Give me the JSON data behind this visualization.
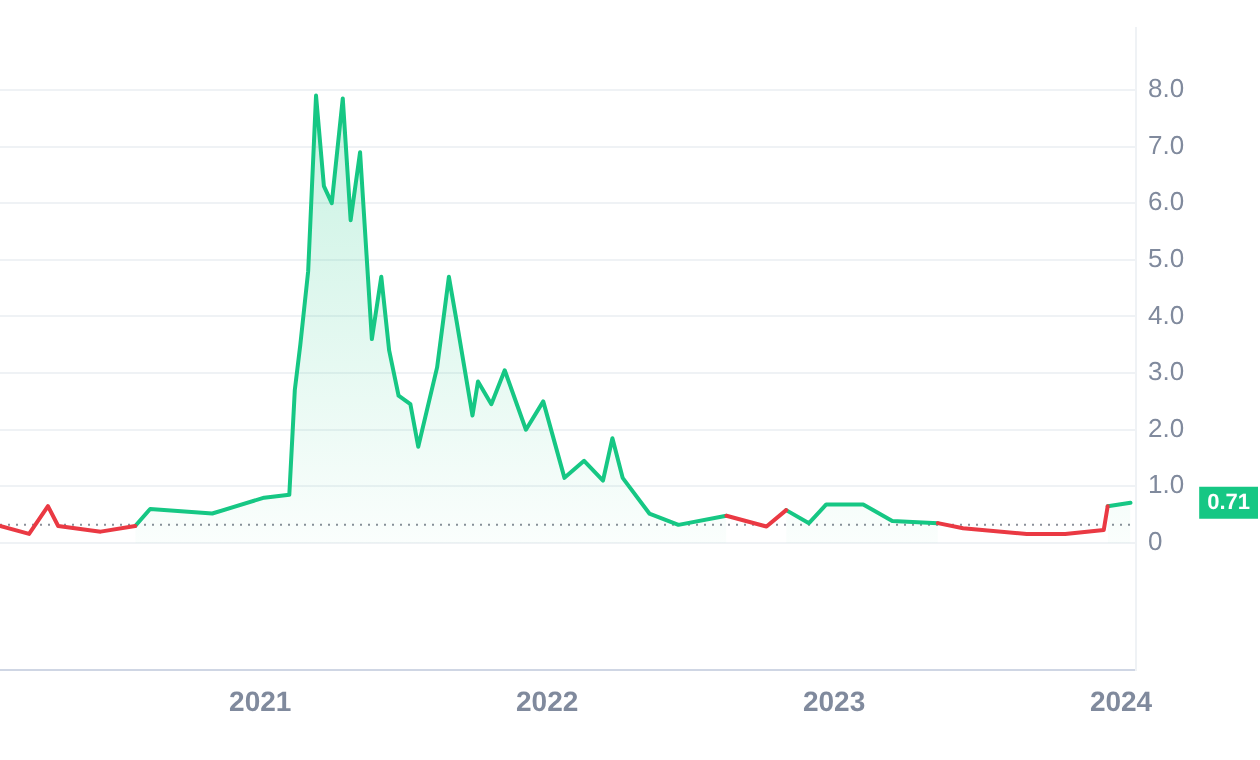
{
  "chart_data": {
    "type": "area",
    "x": [
      "2020-07-26",
      "2020-08-14",
      "2020-11-01",
      "2021-01-06",
      "2021-02-07",
      "2021-02-14",
      "2021-02-21",
      "2021-03-03",
      "2021-03-13",
      "2021-03-23",
      "2021-04-02",
      "2021-04-16",
      "2021-04-26",
      "2021-05-08",
      "2021-05-23",
      "2021-06-04",
      "2021-06-14",
      "2021-06-26",
      "2021-07-11",
      "2021-07-21",
      "2021-08-14",
      "2021-08-29",
      "2021-09-08",
      "2021-09-28",
      "2021-10-05",
      "2021-10-22",
      "2021-11-08",
      "2021-12-05",
      "2021-12-27",
      "2022-01-23",
      "2022-02-17",
      "2022-03-13",
      "2022-03-25",
      "2022-04-07",
      "2022-05-11",
      "2022-06-17",
      "2022-08-17",
      "2022-10-07",
      "2022-11-01",
      "2022-11-30",
      "2022-12-22",
      "2023-02-07",
      "2023-03-16",
      "2023-05-13",
      "2023-06-14",
      "2023-09-03",
      "2023-10-22",
      "2023-12-10",
      "2023-12-15",
      "2024-01-13"
    ],
    "series": [
      {
        "color": "#16c784",
        "values": [
          0.3,
          0.6,
          0.52,
          0.8,
          0.85,
          2.7,
          3.5,
          4.8,
          7.9,
          6.3,
          6.0,
          7.85,
          5.7,
          6.9,
          3.6,
          4.7,
          3.4,
          2.6,
          2.45,
          1.7,
          3.1,
          4.7,
          3.9,
          2.25,
          2.85,
          2.45,
          3.05,
          2.0,
          2.5,
          1.15,
          1.45,
          1.1,
          1.85,
          1.15,
          0.52,
          0.32,
          0.48,
          null,
          0.58,
          0.35,
          0.68,
          0.68,
          0.39,
          0.35,
          null,
          null,
          null,
          null,
          0.65,
          0.71
        ]
      },
      {
        "type": "line",
        "color": "#ea3943",
        "x": [
          "2020-02-05",
          "2020-03-13",
          "2020-04-06",
          "2020-04-19",
          "2020-06-12",
          "2020-07-26"
        ],
        "values": [
          0.3,
          0.16,
          0.65,
          0.3,
          0.2,
          0.3
        ]
      },
      {
        "type": "line",
        "color": "#ea3943",
        "x": [
          "2022-08-17",
          "2022-10-07",
          "2022-11-01"
        ],
        "values": [
          0.48,
          0.29,
          0.58
        ]
      },
      {
        "type": "line",
        "color": "#ea3943",
        "x": [
          "2023-05-13",
          "2023-06-14",
          "2023-09-03",
          "2023-10-22",
          "2023-12-10",
          "2023-12-15"
        ],
        "values": [
          0.35,
          0.26,
          0.16,
          0.16,
          0.23,
          0.65
        ]
      }
    ],
    "xlim": [
      "2020-02-05",
      "2024-01-20"
    ],
    "xticks": [
      "2021",
      "2022",
      "2023",
      "2024"
    ],
    "ylim": [
      -2.25,
      9.1
    ],
    "yticks": [
      0,
      {
        "value": 1,
        "label": "1.0"
      },
      {
        "value": 2,
        "label": "2.0"
      },
      {
        "value": 3,
        "label": "3.0"
      },
      {
        "value": 4,
        "label": "4.0"
      },
      {
        "value": 5,
        "label": "5.0"
      },
      {
        "value": 6,
        "label": "6.0"
      },
      {
        "value": 7,
        "label": "7.0"
      },
      {
        "value": 8,
        "label": "8.0"
      }
    ],
    "grid": "y",
    "legend": false,
    "marker": "none",
    "ref_lines": [
      {
        "axis": "y",
        "value": 0.32,
        "color": "#8a8f99",
        "line_style": "dotted"
      }
    ],
    "annotations": [
      "0.71"
    ]
  }
}
